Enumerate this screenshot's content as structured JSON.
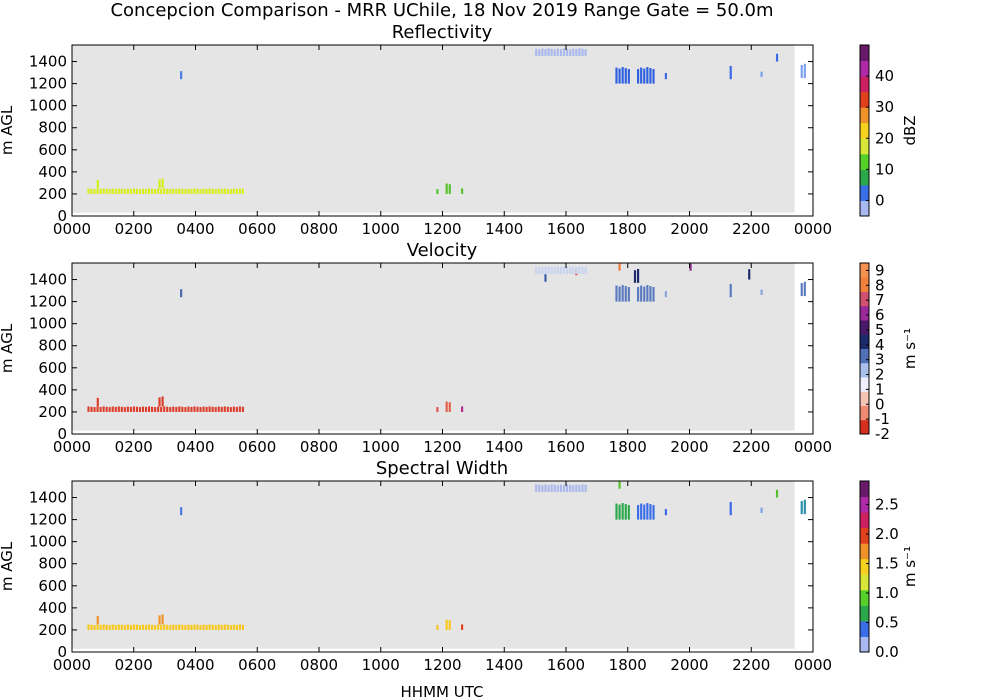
{
  "title": "Concepcion Comparison - MRR UChile, 18 Nov 2019 Range Gate = 50.0m",
  "xlabel": "HHMM UTC",
  "x_ticks": [
    "0000",
    "0200",
    "0400",
    "0600",
    "0800",
    "1000",
    "1200",
    "1400",
    "1600",
    "1800",
    "2000",
    "2200",
    "0000"
  ],
  "chart_data": [
    {
      "type": "heatmap",
      "title": "Reflectivity",
      "ylabel": "m AGL",
      "xlim": [
        0,
        24
      ],
      "ylim": [
        0,
        1550
      ],
      "y_ticks": [
        0,
        200,
        400,
        600,
        800,
        1000,
        1200,
        1400
      ],
      "colorbar": {
        "label": "dBZ",
        "range": [
          -5,
          50
        ],
        "ticks": [
          0,
          10,
          20,
          30,
          40
        ],
        "tick_labels": [
          "0",
          "10",
          "20",
          "30",
          "40"
        ],
        "colors": [
          "#a8b8f0",
          "#3a6ee8",
          "#2aa84a",
          "#56d12a",
          "#d8e83a",
          "#f6d220",
          "#f0922a",
          "#e0401c",
          "#cc2060",
          "#b02aa8",
          "#6a1a6a"
        ]
      },
      "background": "#e5e5e5",
      "echoes": [
        {
          "x": [
            0.5,
            5.6
          ],
          "y": [
            200,
            250
          ],
          "value": 22,
          "color": "#d6ee1a"
        },
        {
          "x": [
            2.8,
            3.0
          ],
          "y": [
            250,
            340
          ],
          "value": 22,
          "color": "#d6ee1a"
        },
        {
          "x": [
            0.8,
            0.9
          ],
          "y": [
            250,
            330
          ],
          "value": 22,
          "color": "#d6ee1a"
        },
        {
          "x": [
            11.8,
            11.9
          ],
          "y": [
            200,
            250
          ],
          "value": 12,
          "color": "#56c12a"
        },
        {
          "x": [
            12.1,
            12.3
          ],
          "y": [
            200,
            300
          ],
          "value": 12,
          "color": "#56c12a"
        },
        {
          "x": [
            12.6,
            12.7
          ],
          "y": [
            200,
            250
          ],
          "value": 12,
          "color": "#56c12a"
        },
        {
          "x": [
            3.5,
            3.6
          ],
          "y": [
            1240,
            1320
          ],
          "value": 2,
          "color": "#4a7ae6"
        },
        {
          "x": [
            17.6,
            18.1
          ],
          "y": [
            1200,
            1350
          ],
          "value": 0,
          "color": "#2d5fe0"
        },
        {
          "x": [
            18.3,
            18.9
          ],
          "y": [
            1200,
            1350
          ],
          "value": 0,
          "color": "#2d5fe0"
        },
        {
          "x": [
            19.2,
            19.3
          ],
          "y": [
            1240,
            1300
          ],
          "value": 0,
          "color": "#3a6ae6"
        },
        {
          "x": [
            21.3,
            21.4
          ],
          "y": [
            1240,
            1360
          ],
          "value": 0,
          "color": "#3a6ae6"
        },
        {
          "x": [
            23.6,
            23.8
          ],
          "y": [
            1250,
            1380
          ],
          "value": -2,
          "color": "#7aa0ee"
        },
        {
          "x": [
            22.3,
            22.4
          ],
          "y": [
            1260,
            1310
          ],
          "value": -2,
          "color": "#7aa0ee"
        },
        {
          "x": [
            22.8,
            22.9
          ],
          "y": [
            1400,
            1480
          ],
          "value": 0,
          "color": "#3a6ae6"
        },
        {
          "x": [
            15.0,
            16.7
          ],
          "y": [
            1450,
            1520
          ],
          "value": -4,
          "color": "#aab8ee"
        }
      ]
    },
    {
      "type": "heatmap",
      "title": "Velocity",
      "ylabel": "m AGL",
      "xlim": [
        0,
        24
      ],
      "ylim": [
        0,
        1550
      ],
      "y_ticks": [
        0,
        200,
        400,
        600,
        800,
        1000,
        1200,
        1400
      ],
      "colorbar": {
        "label": "m s⁻¹",
        "range": [
          -2,
          9.5
        ],
        "ticks": [
          -2,
          -1,
          0,
          1,
          2,
          3,
          4,
          5,
          6,
          7,
          8,
          9
        ],
        "tick_labels": [
          "-2",
          "-1",
          "0",
          "1",
          "2",
          "3",
          "4",
          "5",
          "6",
          "7",
          "8",
          "9"
        ],
        "colors": [
          "#d6301c",
          "#f08a70",
          "#f4c4b4",
          "#eeeeff",
          "#a8c0ea",
          "#5070b8",
          "#1a2a6a",
          "#4a1a6a",
          "#9a2a9a",
          "#d05070",
          "#f0803a",
          "#f49050"
        ]
      },
      "background": "#e5e5e5",
      "echoes": [
        {
          "x": [
            0.5,
            5.6
          ],
          "y": [
            200,
            250
          ],
          "value": -1.8,
          "color": "#dc3c2a"
        },
        {
          "x": [
            2.8,
            3.0
          ],
          "y": [
            250,
            340
          ],
          "value": -1.8,
          "color": "#dc3c2a"
        },
        {
          "x": [
            0.8,
            0.9
          ],
          "y": [
            250,
            330
          ],
          "value": -1.8,
          "color": "#dc3c2a"
        },
        {
          "x": [
            11.8,
            11.9
          ],
          "y": [
            200,
            250
          ],
          "value": -1.5,
          "color": "#e05050"
        },
        {
          "x": [
            12.1,
            12.3
          ],
          "y": [
            200,
            300
          ],
          "value": -1.5,
          "color": "#e0604a"
        },
        {
          "x": [
            12.6,
            12.7
          ],
          "y": [
            200,
            250
          ],
          "value": 5,
          "color": "#b02a8a"
        },
        {
          "x": [
            3.5,
            3.6
          ],
          "y": [
            1240,
            1320
          ],
          "value": 2.5,
          "color": "#4a6ab0"
        },
        {
          "x": [
            17.6,
            18.1
          ],
          "y": [
            1200,
            1350
          ],
          "value": 2,
          "color": "#5a7ac0"
        },
        {
          "x": [
            18.3,
            18.9
          ],
          "y": [
            1200,
            1350
          ],
          "value": 2,
          "color": "#5a7ac0"
        },
        {
          "x": [
            19.2,
            19.3
          ],
          "y": [
            1240,
            1300
          ],
          "value": 1.5,
          "color": "#8aa6dc"
        },
        {
          "x": [
            21.3,
            21.4
          ],
          "y": [
            1240,
            1360
          ],
          "value": 2,
          "color": "#5a7ac0"
        },
        {
          "x": [
            23.6,
            23.8
          ],
          "y": [
            1250,
            1380
          ],
          "value": 2,
          "color": "#5a7ac0"
        },
        {
          "x": [
            22.3,
            22.4
          ],
          "y": [
            1260,
            1310
          ],
          "value": 1.5,
          "color": "#8aa6dc"
        },
        {
          "x": [
            18.2,
            18.4
          ],
          "y": [
            1370,
            1500
          ],
          "value": 3.5,
          "color": "#1a2a6a"
        },
        {
          "x": [
            21.9,
            22.0
          ],
          "y": [
            1400,
            1500
          ],
          "value": 3.5,
          "color": "#1a2a6a"
        },
        {
          "x": [
            17.7,
            17.8
          ],
          "y": [
            1480,
            1550
          ],
          "value": 8.5,
          "color": "#f07a3a"
        },
        {
          "x": [
            20.0,
            20.1
          ],
          "y": [
            1480,
            1550
          ],
          "value": 5.5,
          "color": "#8a2a8a"
        },
        {
          "x": [
            15.3,
            15.4
          ],
          "y": [
            1380,
            1450
          ],
          "value": 2.5,
          "color": "#3a5aa8"
        },
        {
          "x": [
            16.3,
            16.4
          ],
          "y": [
            1440,
            1500
          ],
          "value": -1.8,
          "color": "#dc3c2a"
        },
        {
          "x": [
            15.0,
            16.7
          ],
          "y": [
            1450,
            1520
          ],
          "value": 1,
          "color": "#c8d4f0"
        }
      ]
    },
    {
      "type": "heatmap",
      "title": "Spectral Width",
      "ylabel": "m AGL",
      "xlim": [
        0,
        24
      ],
      "ylim": [
        0,
        1550
      ],
      "y_ticks": [
        0,
        200,
        400,
        600,
        800,
        1000,
        1200,
        1400
      ],
      "colorbar": {
        "label": "m s⁻¹",
        "range": [
          0,
          2.9
        ],
        "ticks": [
          0,
          0.5,
          1.0,
          1.5,
          2.0,
          2.5
        ],
        "tick_labels": [
          "0.0",
          "0.5",
          "1.0",
          "1.5",
          "2.0",
          "2.5"
        ],
        "colors": [
          "#a8b8f0",
          "#3a6ee8",
          "#2aa84a",
          "#56d12a",
          "#d8e83a",
          "#f6d220",
          "#f0922a",
          "#e0401c",
          "#cc2060",
          "#b02aa8",
          "#6a1a6a"
        ]
      },
      "background": "#e5e5e5",
      "echoes": [
        {
          "x": [
            0.5,
            5.6
          ],
          "y": [
            200,
            250
          ],
          "value": 1.5,
          "color": "#f6c81c"
        },
        {
          "x": [
            2.8,
            3.0
          ],
          "y": [
            250,
            340
          ],
          "value": 1.8,
          "color": "#f0922a"
        },
        {
          "x": [
            0.8,
            0.9
          ],
          "y": [
            250,
            330
          ],
          "value": 1.8,
          "color": "#f0922a"
        },
        {
          "x": [
            11.8,
            11.9
          ],
          "y": [
            200,
            250
          ],
          "value": 1.5,
          "color": "#f6c81c"
        },
        {
          "x": [
            12.1,
            12.3
          ],
          "y": [
            200,
            300
          ],
          "value": 1.5,
          "color": "#f6c81c"
        },
        {
          "x": [
            12.6,
            12.7
          ],
          "y": [
            200,
            250
          ],
          "value": 2.0,
          "color": "#e0401c"
        },
        {
          "x": [
            3.5,
            3.6
          ],
          "y": [
            1240,
            1320
          ],
          "value": 0.4,
          "color": "#4a7ae6"
        },
        {
          "x": [
            17.6,
            18.1
          ],
          "y": [
            1200,
            1350
          ],
          "value": 0.8,
          "color": "#2aa84a"
        },
        {
          "x": [
            18.3,
            18.9
          ],
          "y": [
            1200,
            1350
          ],
          "value": 0.5,
          "color": "#3a6ee8"
        },
        {
          "x": [
            19.2,
            19.3
          ],
          "y": [
            1240,
            1300
          ],
          "value": 0.4,
          "color": "#3a6ae6"
        },
        {
          "x": [
            21.3,
            21.4
          ],
          "y": [
            1240,
            1360
          ],
          "value": 0.4,
          "color": "#3a6ae6"
        },
        {
          "x": [
            23.6,
            23.8
          ],
          "y": [
            1250,
            1380
          ],
          "value": 0.6,
          "color": "#2a90a8"
        },
        {
          "x": [
            22.3,
            22.4
          ],
          "y": [
            1260,
            1310
          ],
          "value": 0.3,
          "color": "#7aa0ee"
        },
        {
          "x": [
            22.8,
            22.9
          ],
          "y": [
            1400,
            1480
          ],
          "value": 0.9,
          "color": "#56c12a"
        },
        {
          "x": [
            17.7,
            17.8
          ],
          "y": [
            1480,
            1550
          ],
          "value": 0.9,
          "color": "#56c12a"
        },
        {
          "x": [
            15.0,
            16.7
          ],
          "y": [
            1450,
            1520
          ],
          "value": 0.2,
          "color": "#aab8ee"
        }
      ]
    }
  ]
}
